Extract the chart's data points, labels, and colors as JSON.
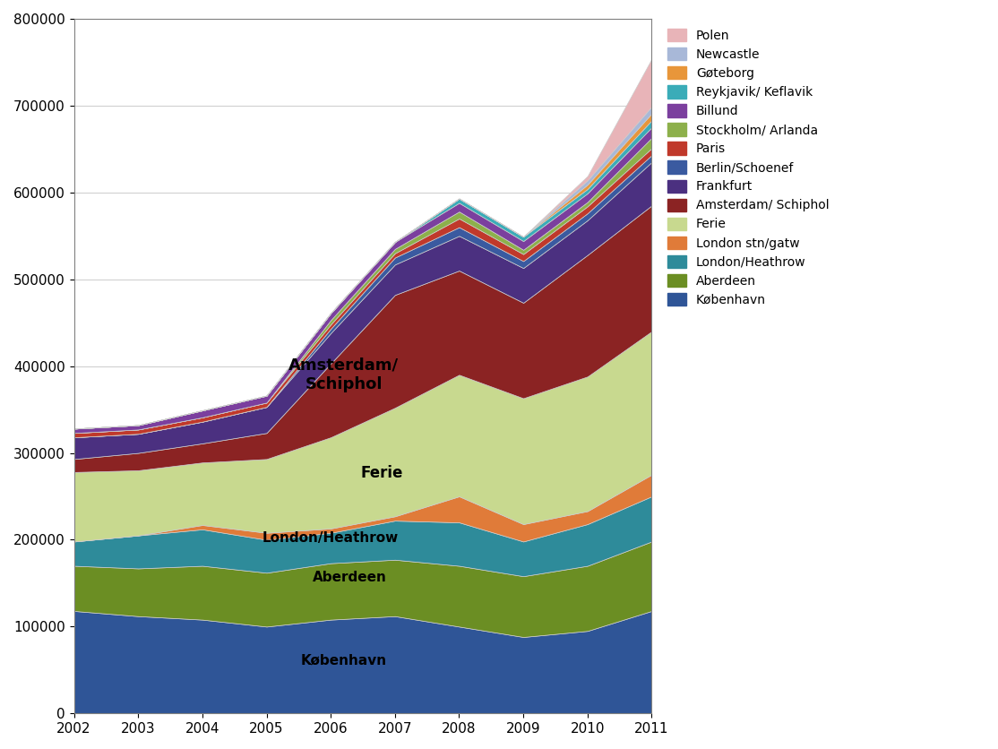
{
  "years": [
    2002,
    2003,
    2004,
    2005,
    2006,
    2007,
    2008,
    2009,
    2010,
    2011
  ],
  "series": [
    {
      "label": "København",
      "color": "#2F5597",
      "values": [
        118000,
        112000,
        108000,
        100000,
        108000,
        112000,
        100000,
        88000,
        95000,
        118000
      ]
    },
    {
      "label": "Aberdeen",
      "color": "#6B8E23",
      "values": [
        52000,
        55000,
        62000,
        62000,
        65000,
        65000,
        70000,
        70000,
        75000,
        80000
      ]
    },
    {
      "label": "London/Heathrow",
      "color": "#2E8B9A",
      "values": [
        28000,
        38000,
        42000,
        38000,
        35000,
        45000,
        50000,
        40000,
        48000,
        52000
      ]
    },
    {
      "label": "London stn/gatw",
      "color": "#E07B39",
      "values": [
        0,
        0,
        5000,
        8000,
        5000,
        5000,
        30000,
        20000,
        15000,
        25000
      ]
    },
    {
      "label": "Ferie",
      "color": "#C8D98F",
      "values": [
        80000,
        75000,
        72000,
        85000,
        105000,
        125000,
        140000,
        145000,
        155000,
        165000
      ]
    },
    {
      "label": "Amsterdam/ Schiphol",
      "color": "#8B2323",
      "values": [
        15000,
        20000,
        22000,
        30000,
        85000,
        130000,
        120000,
        110000,
        140000,
        145000
      ]
    },
    {
      "label": "Frankfurt",
      "color": "#4B3080",
      "values": [
        25000,
        22000,
        25000,
        30000,
        35000,
        35000,
        40000,
        40000,
        40000,
        50000
      ]
    },
    {
      "label": "Berlin/Schoenef",
      "color": "#3A5AA0",
      "values": [
        0,
        0,
        0,
        0,
        5000,
        8000,
        10000,
        8000,
        8000,
        8000
      ]
    },
    {
      "label": "Paris",
      "color": "#C0392B",
      "values": [
        5000,
        5000,
        5000,
        5000,
        5000,
        5000,
        10000,
        8000,
        8000,
        8000
      ]
    },
    {
      "label": "Stockholm/ Arlanda",
      "color": "#8DB04B",
      "values": [
        0,
        0,
        0,
        0,
        5000,
        5000,
        8000,
        5000,
        5000,
        12000
      ]
    },
    {
      "label": "Billund",
      "color": "#7B3F9E",
      "values": [
        5000,
        5000,
        8000,
        8000,
        8000,
        8000,
        10000,
        10000,
        10000,
        12000
      ]
    },
    {
      "label": "Reykjavik/ Keflavik",
      "color": "#3AACB8",
      "values": [
        0,
        0,
        0,
        0,
        0,
        0,
        5000,
        5000,
        5000,
        8000
      ]
    },
    {
      "label": "Gøteborg",
      "color": "#E8963A",
      "values": [
        0,
        0,
        0,
        0,
        0,
        0,
        0,
        0,
        5000,
        8000
      ]
    },
    {
      "label": "Newcastle",
      "color": "#A8B8D8",
      "values": [
        0,
        0,
        0,
        0,
        0,
        0,
        0,
        0,
        5000,
        8000
      ]
    },
    {
      "label": "Polen",
      "color": "#E8B4B8",
      "values": [
        0,
        0,
        0,
        0,
        0,
        0,
        0,
        0,
        5000,
        55000
      ]
    }
  ],
  "ylim": [
    0,
    800000
  ],
  "yticks": [
    0,
    100000,
    200000,
    300000,
    400000,
    500000,
    600000,
    700000,
    800000
  ],
  "background_color": "#ffffff",
  "grid_color": "#d0d0d0",
  "spine_color": "#808080"
}
